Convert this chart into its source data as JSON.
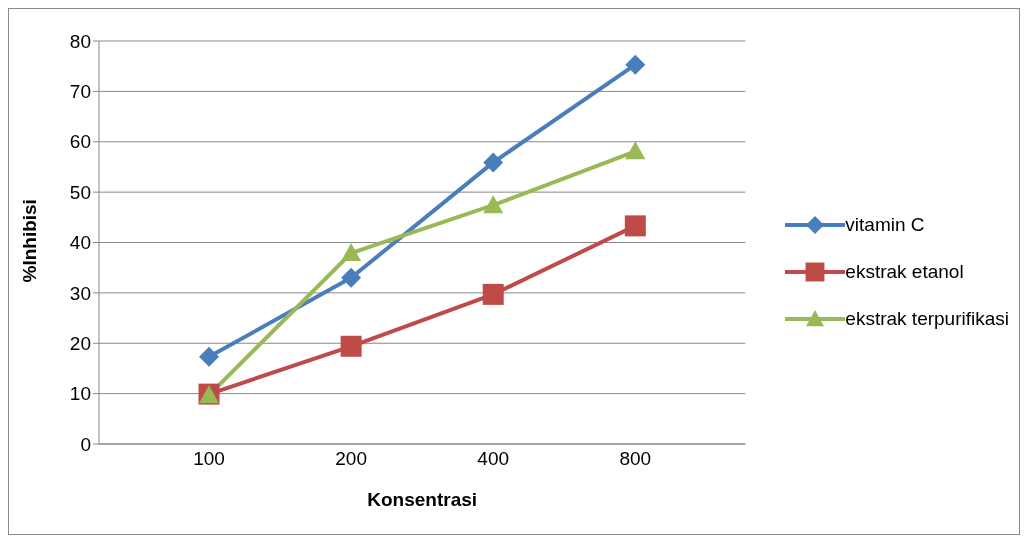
{
  "chart_data": {
    "type": "line",
    "xlabel": "Konsentrasi",
    "ylabel": "%Inhibisi",
    "categories": [
      "100",
      "200",
      "400",
      "800"
    ],
    "ylim": [
      0,
      80
    ],
    "yticks": [
      0,
      10,
      20,
      30,
      40,
      50,
      60,
      70,
      80
    ],
    "grid": "y",
    "legend": "right",
    "series": [
      {
        "name": "vitamin C",
        "color": "#4a7ebb",
        "marker": "diamond",
        "values": [
          17.3,
          33.0,
          55.9,
          75.3
        ]
      },
      {
        "name": "ekstrak etanol",
        "color": "#be4b48",
        "marker": "square",
        "values": [
          9.9,
          19.4,
          29.7,
          43.3
        ]
      },
      {
        "name": "ekstrak terpurifikasi",
        "color": "#98b954",
        "marker": "triangle",
        "values": [
          9.7,
          37.9,
          47.4,
          58.1
        ]
      }
    ]
  }
}
